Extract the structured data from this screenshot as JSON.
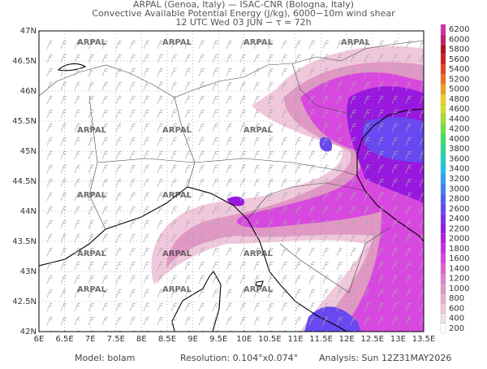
{
  "header": {
    "line1": "ARPAL (Genoa, Italy)  —  ISAC-CNR (Bologna, Italy)",
    "line2": "Convective Available Potential Energy (J/kg), 6000−10m wind shear",
    "line3": "12 UTC Wed 03 JUN  −  τ = 72h"
  },
  "map": {
    "watermark": "ARPAL",
    "x_labels": [
      "6E",
      "6.5E",
      "7E",
      "7.5E",
      "8E",
      "8.5E",
      "9E",
      "9.5E",
      "10E",
      "10.5E",
      "11E",
      "11.5E",
      "12E",
      "12.5E",
      "13E",
      "13.5E"
    ],
    "y_labels": [
      "47N",
      "46.5N",
      "46N",
      "45.5N",
      "45N",
      "44.5N",
      "44N",
      "43.5N",
      "43N",
      "42.5N",
      "42N"
    ]
  },
  "legend": {
    "levels": [
      {
        "value": 200,
        "color": "#ffffff"
      },
      {
        "value": 400,
        "color": "#f5e0ea"
      },
      {
        "value": 600,
        "color": "#f0c8dc"
      },
      {
        "value": 800,
        "color": "#e8b0cf"
      },
      {
        "value": 1000,
        "color": "#e098c4"
      },
      {
        "value": 1200,
        "color": "#e080d0"
      },
      {
        "value": 1400,
        "color": "#e060d8"
      },
      {
        "value": 1600,
        "color": "#d848e0"
      },
      {
        "value": 1800,
        "color": "#c830e0"
      },
      {
        "value": 2000,
        "color": "#b020e0"
      },
      {
        "value": 2200,
        "color": "#9818e0"
      },
      {
        "value": 2400,
        "color": "#8030e8"
      },
      {
        "value": 2600,
        "color": "#6848f0"
      },
      {
        "value": 2800,
        "color": "#5060f0"
      },
      {
        "value": 3000,
        "color": "#4080f0"
      },
      {
        "value": 3200,
        "color": "#30a0f0"
      },
      {
        "value": 3400,
        "color": "#20c0e8"
      },
      {
        "value": 3600,
        "color": "#20d0c0"
      },
      {
        "value": 3800,
        "color": "#30d890"
      },
      {
        "value": 4000,
        "color": "#40e060"
      },
      {
        "value": 4200,
        "color": "#70e040"
      },
      {
        "value": 4400,
        "color": "#a0e030"
      },
      {
        "value": 4600,
        "color": "#d0e020"
      },
      {
        "value": 4800,
        "color": "#f0d020"
      },
      {
        "value": 5000,
        "color": "#f0a020"
      },
      {
        "value": 5200,
        "color": "#f07020"
      },
      {
        "value": 5400,
        "color": "#e84020"
      },
      {
        "value": 5600,
        "color": "#d02020"
      },
      {
        "value": 5800,
        "color": "#b01020"
      },
      {
        "value": 6000,
        "color": "#c02070"
      },
      {
        "value": 6200,
        "color": "#d030b0"
      }
    ]
  },
  "footer": {
    "model": "Model: bolam",
    "resolution": "Resolution: 0.104°x0.074°",
    "analysis": "Analysis: Sun 12Z31MAY2026"
  }
}
